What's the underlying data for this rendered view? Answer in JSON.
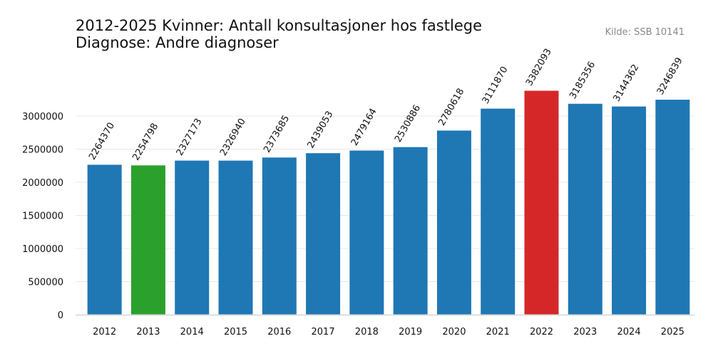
{
  "title_line1": "2012-2025 Kvinner: Antall konsultasjoner hos fastlege",
  "title_line2": "Diagnose: Andre diagnoser",
  "source": "Kilde: SSB 10141",
  "colors": {
    "default": "#1f77b4",
    "min": "#2ca02c",
    "max": "#d62728",
    "grid": "#e8e8e8",
    "axis": "#dddddd"
  },
  "chart_data": {
    "type": "bar",
    "title": "2012-2025 Kvinner: Antall konsultasjoner hos fastlege\nDiagnose: Andre diagnoser",
    "xlabel": "",
    "ylabel": "",
    "categories": [
      "2012",
      "2013",
      "2014",
      "2015",
      "2016",
      "2017",
      "2018",
      "2019",
      "2020",
      "2021",
      "2022",
      "2023",
      "2024",
      "2025"
    ],
    "values": [
      2264370,
      2254798,
      2327173,
      2326940,
      2373685,
      2439053,
      2479164,
      2530886,
      2780618,
      3111870,
      3382093,
      3185356,
      3144362,
      3246839
    ],
    "yticks": [
      0,
      500000,
      1000000,
      1500000,
      2000000,
      2500000,
      3000000
    ],
    "ylim": [
      0,
      3600000
    ],
    "grid": true,
    "highlight": {
      "min_category": "2013",
      "max_category": "2022"
    }
  }
}
